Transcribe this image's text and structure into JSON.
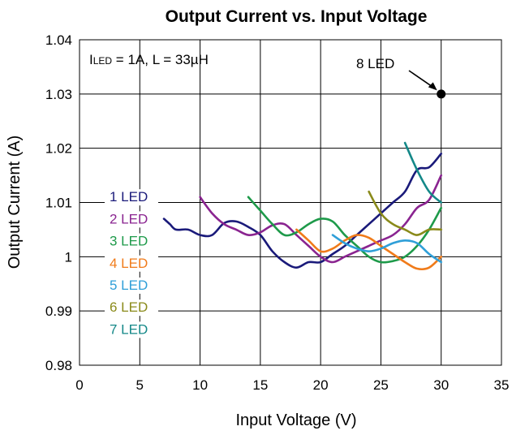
{
  "chart_data": {
    "type": "line",
    "title": "Output Current vs. Input Voltage",
    "xlabel": "Input Voltage (V)",
    "ylabel": "Output Current (A)",
    "xlim": [
      0,
      35
    ],
    "ylim": [
      0.98,
      1.04
    ],
    "xticks": [
      0,
      5,
      10,
      15,
      20,
      25,
      30,
      35
    ],
    "xtick_labels": [
      "0",
      "5",
      "10",
      "15",
      "20",
      "25",
      "30",
      "35"
    ],
    "yticks": [
      0.98,
      0.99,
      1.0,
      1.01,
      1.02,
      1.03,
      1.04
    ],
    "ytick_labels": [
      "0.98",
      "0.99",
      "1",
      "1.01",
      "1.02",
      "1.03",
      "1.04"
    ],
    "grid": true,
    "annotation": {
      "text_main": "I",
      "text_sub": "LED",
      "text_rest": " = 1A, L = 33µH"
    },
    "series": [
      {
        "name": "1 LED",
        "color": "#1a1a7a",
        "points": [
          [
            7,
            1.007
          ],
          [
            7.5,
            1.006
          ],
          [
            8,
            1.005
          ],
          [
            9,
            1.005
          ],
          [
            10,
            1.004
          ],
          [
            11,
            1.004
          ],
          [
            12,
            1.0062
          ],
          [
            13,
            1.0065
          ],
          [
            14,
            1.0055
          ],
          [
            15,
            1.004
          ],
          [
            16,
            1.001
          ],
          [
            17,
            0.999
          ],
          [
            18,
            0.998
          ],
          [
            19,
            0.999
          ],
          [
            20,
            0.999
          ],
          [
            21,
            1.0005
          ],
          [
            22,
            1.002
          ],
          [
            23,
            1.004
          ],
          [
            24,
            1.006
          ],
          [
            25,
            1.008
          ],
          [
            26,
            1.01
          ],
          [
            27,
            1.012
          ],
          [
            28,
            1.016
          ],
          [
            29,
            1.0165
          ],
          [
            30,
            1.019
          ]
        ]
      },
      {
        "name": "2 LED",
        "color": "#8a2490",
        "points": [
          [
            10,
            1.011
          ],
          [
            11,
            1.008
          ],
          [
            12,
            1.006
          ],
          [
            13,
            1.005
          ],
          [
            14,
            1.004
          ],
          [
            15,
            1.0045
          ],
          [
            16,
            1.0058
          ],
          [
            17,
            1.006
          ],
          [
            18,
            1.004
          ],
          [
            19,
            1.002
          ],
          [
            20,
            1.0
          ],
          [
            21,
            0.999
          ],
          [
            22,
            1.0
          ],
          [
            23,
            1.001
          ],
          [
            24,
            1.002
          ],
          [
            25,
            1.003
          ],
          [
            26,
            1.004
          ],
          [
            27,
            1.006
          ],
          [
            28,
            1.009
          ],
          [
            29,
            1.0105
          ],
          [
            30,
            1.015
          ]
        ]
      },
      {
        "name": "3 LED",
        "color": "#1e9a4a",
        "points": [
          [
            14,
            1.011
          ],
          [
            15,
            1.0085
          ],
          [
            16,
            1.006
          ],
          [
            17,
            1.004
          ],
          [
            18,
            1.0045
          ],
          [
            19,
            1.006
          ],
          [
            20,
            1.007
          ],
          [
            21,
            1.0065
          ],
          [
            22,
            1.004
          ],
          [
            23,
            1.002
          ],
          [
            24,
            1.0
          ],
          [
            25,
            0.999
          ],
          [
            26,
            0.9992
          ],
          [
            27,
            1.0
          ],
          [
            28,
            1.002
          ],
          [
            29,
            1.005
          ],
          [
            30,
            1.009
          ]
        ]
      },
      {
        "name": "4 LED",
        "color": "#f07b1a",
        "points": [
          [
            18,
            1.005
          ],
          [
            19,
            1.003
          ],
          [
            20,
            1.001
          ],
          [
            21,
            1.0015
          ],
          [
            22,
            1.003
          ],
          [
            23,
            1.004
          ],
          [
            24,
            1.0035
          ],
          [
            25,
            1.002
          ],
          [
            26,
            1.0005
          ],
          [
            27,
            0.999
          ],
          [
            28,
            0.9978
          ],
          [
            29,
            0.998
          ],
          [
            30,
            1.0
          ]
        ]
      },
      {
        "name": "5 LED",
        "color": "#2f9fd8",
        "points": [
          [
            21,
            1.004
          ],
          [
            22,
            1.0025
          ],
          [
            23,
            1.0015
          ],
          [
            24,
            1.001
          ],
          [
            25,
            1.0015
          ],
          [
            26,
            1.0025
          ],
          [
            27,
            1.003
          ],
          [
            28,
            1.0025
          ],
          [
            29,
            1.0005
          ],
          [
            30,
            0.999
          ]
        ]
      },
      {
        "name": "6 LED",
        "color": "#8a8a1a",
        "points": [
          [
            24,
            1.012
          ],
          [
            25,
            1.008
          ],
          [
            26,
            1.006
          ],
          [
            27,
            1.005
          ],
          [
            28,
            1.004
          ],
          [
            29,
            1.005
          ],
          [
            30,
            1.005
          ]
        ]
      },
      {
        "name": "7 LED",
        "color": "#148888",
        "points": [
          [
            27,
            1.021
          ],
          [
            28,
            1.016
          ],
          [
            29,
            1.012
          ],
          [
            30,
            1.01
          ]
        ]
      }
    ],
    "marker": {
      "label": "8 LED",
      "x": 30,
      "y": 1.03,
      "color": "#000000"
    }
  }
}
